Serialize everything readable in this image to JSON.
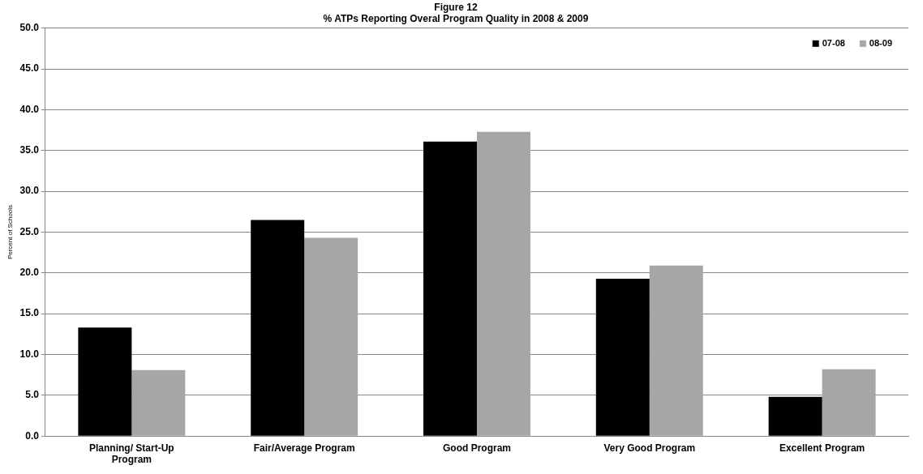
{
  "chart_data": {
    "type": "bar",
    "title": "Figure 12",
    "subtitle": "% ATPs Reporting Overal Program Quality in 2008 & 2009",
    "ylabel": "Percent of Schools",
    "categories": [
      "Planning/ Start-Up Program",
      "Fair/Average Program",
      "Good Program",
      "Very Good Program",
      "Excellent Program"
    ],
    "series": [
      {
        "name": "07-08",
        "color": "#000000",
        "values": [
          13.3,
          26.5,
          36.1,
          19.3,
          4.8
        ]
      },
      {
        "name": "08-09",
        "color": "#a6a6a6",
        "values": [
          8.1,
          24.3,
          37.3,
          20.9,
          8.2
        ]
      }
    ],
    "ylim": [
      0,
      50
    ],
    "yticks": [
      {
        "value": 0,
        "label": "0.0"
      },
      {
        "value": 5,
        "label": "5.0"
      },
      {
        "value": 10,
        "label": "10.0"
      },
      {
        "value": 15,
        "label": "15.0"
      },
      {
        "value": 20,
        "label": "20.0"
      },
      {
        "value": 25,
        "label": "25.0"
      },
      {
        "value": 30,
        "label": "30.0"
      },
      {
        "value": 35,
        "label": "35.0"
      },
      {
        "value": 40,
        "label": "40.0"
      },
      {
        "value": 45,
        "label": "45.0"
      },
      {
        "value": 50,
        "label": "50.0"
      }
    ],
    "grid": "y",
    "legend": "top right"
  }
}
